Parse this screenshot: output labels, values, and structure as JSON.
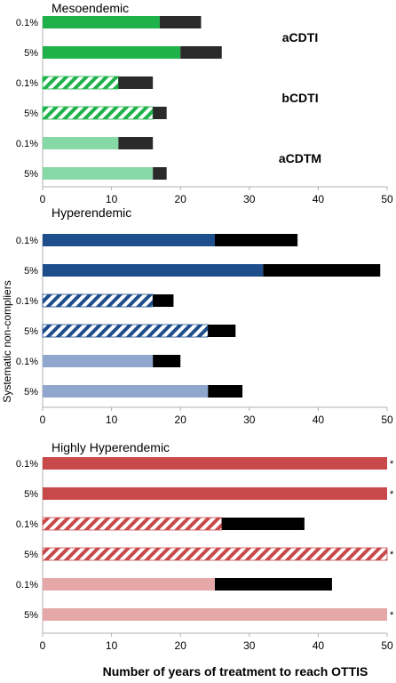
{
  "figure": {
    "y_axis_label": "Systematic non-compliers",
    "x_axis_label": "Number of years of treatment to reach OTTIS"
  },
  "colors": {
    "meso": "#1fb24a",
    "meso_light": "#86d9a4",
    "hyper": "#1f4e8c",
    "hyper_light": "#8fa7cc",
    "highly": "#c9494a",
    "highly_light": "#e6a7a8",
    "excess_meso": "#2a2a2a",
    "excess": "#000000",
    "axis": "#b0b0b0"
  },
  "chart_data": [
    {
      "type": "bar",
      "orientation": "horizontal",
      "stacked": true,
      "title": "Mesoendemic",
      "categories": [
        "0.1%",
        "5%",
        "0.1%",
        "5%",
        "0.1%",
        "5%"
      ],
      "xlim": [
        0,
        50
      ],
      "xticks": [
        0,
        10,
        20,
        30,
        40,
        50
      ],
      "grid": false,
      "treatment_labels": [
        {
          "label": "aCDTI",
          "rows": [
            0,
            1
          ]
        },
        {
          "label": "bCDTI",
          "rows": [
            2,
            3
          ]
        },
        {
          "label": "aCDTM",
          "rows": [
            4,
            5
          ]
        }
      ],
      "bars": [
        {
          "category": "0.1%",
          "style": "solid",
          "base": 17,
          "total": 23
        },
        {
          "category": "5%",
          "style": "solid",
          "base": 20,
          "total": 26
        },
        {
          "category": "0.1%",
          "style": "hatched",
          "base": 11,
          "total": 16
        },
        {
          "category": "5%",
          "style": "hatched",
          "base": 16,
          "total": 18
        },
        {
          "category": "0.1%",
          "style": "light",
          "base": 11,
          "total": 16
        },
        {
          "category": "5%",
          "style": "light",
          "base": 16,
          "total": 18
        }
      ]
    },
    {
      "type": "bar",
      "orientation": "horizontal",
      "stacked": true,
      "title": "Hyperendemic",
      "categories": [
        "0.1%",
        "5%",
        "0.1%",
        "5%",
        "0.1%",
        "5%"
      ],
      "xlim": [
        0,
        50
      ],
      "xticks": [
        0,
        10,
        20,
        30,
        40,
        50
      ],
      "grid": false,
      "bars": [
        {
          "category": "0.1%",
          "style": "solid",
          "base": 25,
          "total": 37
        },
        {
          "category": "5%",
          "style": "solid",
          "base": 32,
          "total": 49
        },
        {
          "category": "0.1%",
          "style": "hatched",
          "base": 16,
          "total": 19
        },
        {
          "category": "5%",
          "style": "hatched",
          "base": 24,
          "total": 28
        },
        {
          "category": "0.1%",
          "style": "light",
          "base": 16,
          "total": 20
        },
        {
          "category": "5%",
          "style": "light",
          "base": 24,
          "total": 29
        }
      ]
    },
    {
      "type": "bar",
      "orientation": "horizontal",
      "stacked": true,
      "title": "Highly Hyperendemic",
      "categories": [
        "0.1%",
        "5%",
        "0.1%",
        "5%",
        "0.1%",
        "5%"
      ],
      "xlim": [
        0,
        50
      ],
      "xticks": [
        0,
        10,
        20,
        30,
        40,
        50
      ],
      "grid": false,
      "bars": [
        {
          "category": "0.1%",
          "style": "solid",
          "base": 50,
          "total": 50,
          "marker": "*"
        },
        {
          "category": "5%",
          "style": "solid",
          "base": 50,
          "total": 50,
          "marker": "*"
        },
        {
          "category": "0.1%",
          "style": "hatched",
          "base": 26,
          "total": 38
        },
        {
          "category": "5%",
          "style": "hatched",
          "base": 50,
          "total": 50,
          "marker": "*"
        },
        {
          "category": "0.1%",
          "style": "light",
          "base": 25,
          "total": 42
        },
        {
          "category": "5%",
          "style": "light",
          "base": 50,
          "total": 50,
          "marker": "*"
        }
      ]
    }
  ]
}
